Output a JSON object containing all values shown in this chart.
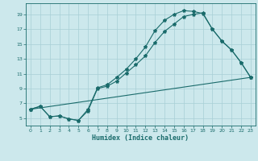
{
  "xlabel": "Humidex (Indice chaleur)",
  "bg_color": "#cce8ec",
  "grid_color": "#a8cfd6",
  "line_color": "#1a6b6b",
  "xlim": [
    -0.5,
    23.5
  ],
  "ylim": [
    4.0,
    20.5
  ],
  "xticks": [
    0,
    1,
    2,
    3,
    4,
    5,
    6,
    7,
    8,
    9,
    10,
    11,
    12,
    13,
    14,
    15,
    16,
    17,
    18,
    19,
    20,
    21,
    22,
    23
  ],
  "yticks": [
    5,
    7,
    9,
    11,
    13,
    15,
    17,
    19
  ],
  "series1_x": [
    0,
    1,
    2,
    3,
    4,
    5,
    6,
    7,
    8,
    9,
    10,
    11,
    12,
    13,
    14,
    15,
    16,
    17,
    18,
    19,
    20,
    21,
    22,
    23
  ],
  "series1_y": [
    6.2,
    6.6,
    5.2,
    5.3,
    4.9,
    4.7,
    6.2,
    9.1,
    9.5,
    10.5,
    11.6,
    13.0,
    14.6,
    16.8,
    18.2,
    19.0,
    19.5,
    19.4,
    19.1,
    17.0,
    15.4,
    14.2,
    12.5,
    10.5
  ],
  "series2_x": [
    0,
    1,
    2,
    3,
    4,
    5,
    6,
    7,
    8,
    9,
    10,
    11,
    12,
    13,
    14,
    15,
    16,
    17,
    18,
    19,
    20,
    21,
    22,
    23
  ],
  "series2_y": [
    6.2,
    6.6,
    5.2,
    5.3,
    4.9,
    4.7,
    6.0,
    9.0,
    9.3,
    10.0,
    11.1,
    12.2,
    13.4,
    15.2,
    16.7,
    17.7,
    18.7,
    19.0,
    19.2,
    17.0,
    15.4,
    14.2,
    12.5,
    10.5
  ],
  "series3_x": [
    0,
    23
  ],
  "series3_y": [
    6.2,
    10.5
  ]
}
